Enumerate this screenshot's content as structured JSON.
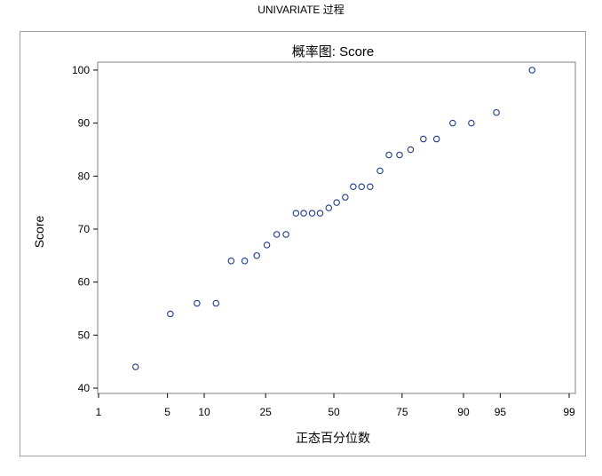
{
  "page_title": "UNIVARIATE 过程",
  "chart_data": {
    "type": "scatter",
    "title": "概率图: Score",
    "xlabel": "正态百分位数",
    "ylabel": "Score",
    "x_scale": "normal-probability",
    "x_ticks": [
      1,
      5,
      10,
      25,
      50,
      75,
      90,
      95,
      99
    ],
    "y_ticks": [
      40,
      50,
      60,
      70,
      80,
      90,
      100
    ],
    "ylim": [
      39,
      101.5
    ],
    "grid": false,
    "marker": "open-circle",
    "marker_color": "#1f3c88",
    "points": [
      {
        "x": 2.5,
        "y": 44
      },
      {
        "x": 5.3,
        "y": 54
      },
      {
        "x": 8.8,
        "y": 56
      },
      {
        "x": 12.2,
        "y": 56
      },
      {
        "x": 15.5,
        "y": 64
      },
      {
        "x": 18.9,
        "y": 64
      },
      {
        "x": 22.3,
        "y": 65
      },
      {
        "x": 25.4,
        "y": 67
      },
      {
        "x": 28.6,
        "y": 69
      },
      {
        "x": 31.8,
        "y": 69
      },
      {
        "x": 35.4,
        "y": 73
      },
      {
        "x": 38.3,
        "y": 73
      },
      {
        "x": 41.5,
        "y": 73
      },
      {
        "x": 44.6,
        "y": 73
      },
      {
        "x": 48.0,
        "y": 74
      },
      {
        "x": 51.1,
        "y": 75
      },
      {
        "x": 54.5,
        "y": 76
      },
      {
        "x": 57.6,
        "y": 78
      },
      {
        "x": 60.8,
        "y": 78
      },
      {
        "x": 64.0,
        "y": 78
      },
      {
        "x": 67.6,
        "y": 81
      },
      {
        "x": 70.7,
        "y": 84
      },
      {
        "x": 74.2,
        "y": 84
      },
      {
        "x": 77.6,
        "y": 85
      },
      {
        "x": 81.2,
        "y": 87
      },
      {
        "x": 84.5,
        "y": 87
      },
      {
        "x": 88.0,
        "y": 90
      },
      {
        "x": 91.3,
        "y": 90
      },
      {
        "x": 94.6,
        "y": 92
      },
      {
        "x": 97.5,
        "y": 100
      }
    ]
  }
}
